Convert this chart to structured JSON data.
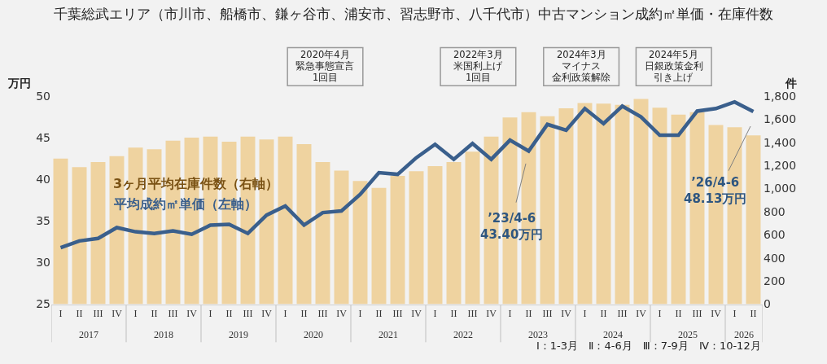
{
  "chart_data": {
    "type": "bar",
    "title": "千葉総武エリア（市川市、船橋市、鎌ヶ谷市、浦安市、習志野市、八千代市）中古マンション成約㎡単価・在庫件数",
    "ylabel": "万円",
    "y2label": "件",
    "categories": [
      "I",
      "II",
      "III",
      "IV",
      "I",
      "II",
      "III",
      "IV",
      "I",
      "II",
      "III",
      "IV",
      "I",
      "II",
      "III",
      "IV",
      "I",
      "II",
      "III",
      "IV",
      "I",
      "II",
      "III",
      "IV",
      "I",
      "II",
      "III",
      "IV",
      "I",
      "II",
      "III",
      "IV",
      "I",
      "II",
      "III",
      "IV",
      "I",
      "II"
    ],
    "series": [
      {
        "name": "3ヶ月平均在庫件数（右軸）",
        "axis": "y2",
        "color": "#efd3a0",
        "values": [
          1260,
          1185,
          1230,
          1280,
          1355,
          1340,
          1415,
          1440,
          1450,
          1405,
          1450,
          1425,
          1450,
          1385,
          1230,
          1155,
          1065,
          1005,
          1110,
          1150,
          1195,
          1230,
          1320,
          1450,
          1615,
          1660,
          1625,
          1695,
          1740,
          1735,
          1725,
          1775,
          1700,
          1640,
          1660,
          1550,
          1530,
          1460
        ]
      },
      {
        "name": "平均成約㎡単価（左軸）",
        "type": "line",
        "axis": "y",
        "color": "#3a5f8c",
        "values": [
          31.8,
          32.6,
          32.9,
          34.2,
          33.7,
          33.5,
          33.8,
          33.4,
          34.5,
          34.6,
          33.5,
          35.7,
          36.8,
          34.5,
          36.0,
          36.2,
          38.2,
          40.8,
          40.6,
          42.6,
          44.2,
          42.4,
          44.3,
          42.4,
          44.7,
          43.4,
          46.6,
          45.9,
          48.5,
          46.7,
          48.8,
          47.5,
          45.3,
          45.3,
          48.2,
          48.5,
          49.3,
          48.13
        ]
      }
    ],
    "ylim": [
      25,
      50
    ],
    "yticks": [
      25,
      30,
      35,
      40,
      45,
      50
    ],
    "y2lim": [
      0,
      1800
    ],
    "y2ticks": [
      0,
      200,
      400,
      600,
      800,
      {
        "value": 1000,
        "label": "1,000"
      },
      {
        "value": 1200,
        "label": "1,200"
      },
      {
        "value": 1400,
        "label": "1,400"
      },
      {
        "value": 1600,
        "label": "1,600"
      },
      {
        "value": 1800,
        "label": "1,800"
      }
    ],
    "annotations": [
      "2020年4月",
      "緊急事態宣言",
      "1回目",
      "2022年3月",
      "米国利上げ",
      "1回目",
      "2024年3月",
      "マイナス",
      "金利政策解除",
      "2024年5月",
      "日銀政策金利",
      "引き上げ",
      "2017",
      "2018",
      "2019",
      "2020",
      "2021",
      "2022",
      "2023",
      "2024",
      "2025",
      "2026",
      "’23/4-6\n43.40万円",
      "’26/4-6\n48.13万円",
      "Ⅰ：1-3月　Ⅱ：4-6月　Ⅲ：7-9月　Ⅳ：10-12月"
    ],
    "grid": false,
    "legend": false
  }
}
